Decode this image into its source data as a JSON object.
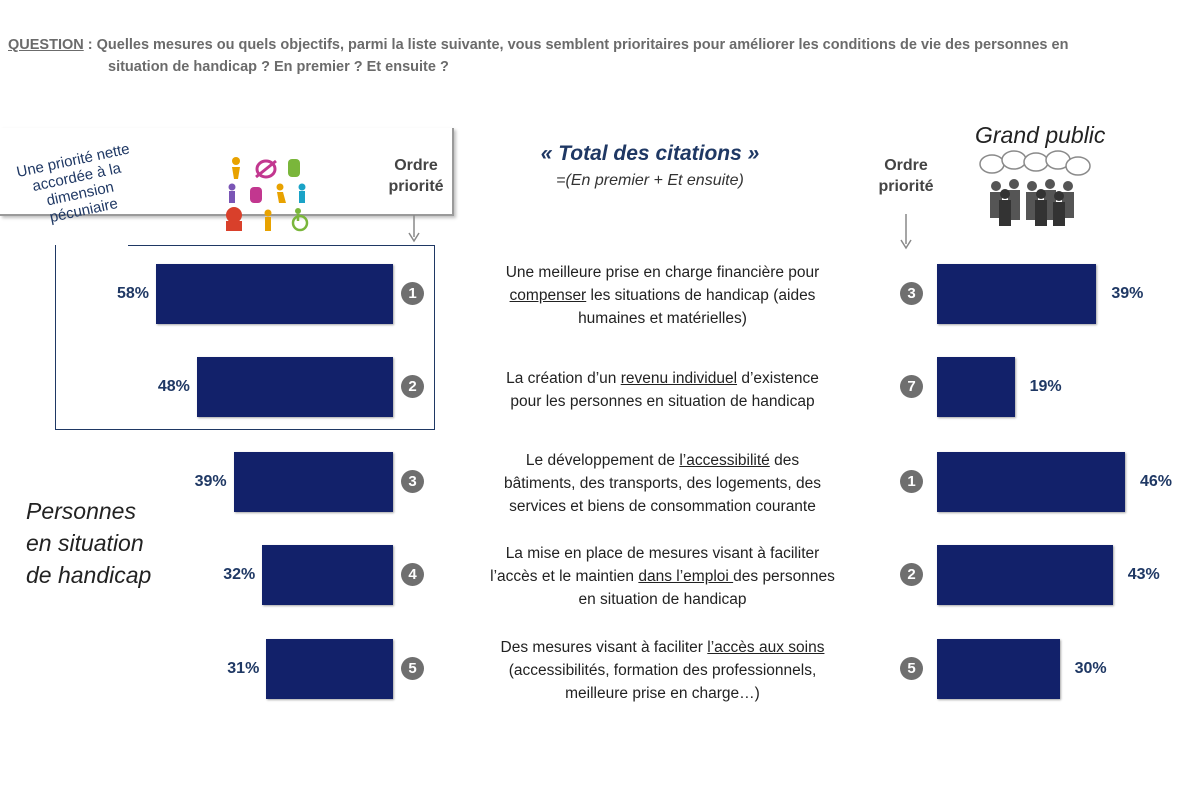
{
  "question": {
    "label": "QUESTION",
    "line1": " : Quelles  mesures ou quels objectifs, parmi la liste suivante, vous semblent prioritaires pour améliorer les conditions de vie des personnes en",
    "line2": "situation de handicap ? En premier ? Et ensuite ?"
  },
  "header": {
    "title": "« Total des citations »",
    "subtitle": "=(En premier + Et ensuite)",
    "ordre_left": [
      "Ordre",
      "priorité"
    ],
    "ordre_right": [
      "Ordre",
      "priorité"
    ],
    "grand_public": "Grand public"
  },
  "callout": [
    "Une priorité nette",
    "accordée à la",
    "dimension",
    "pécuniaire"
  ],
  "group_left": [
    "Personnes",
    "en situation",
    "de handicap"
  ],
  "measures": [
    {
      "lines": [
        [
          "Une meilleure prise en charge financière pour"
        ],
        [
          "",
          "compenser",
          " les situations de handicap (aides"
        ],
        [
          "humaines et matérielles)"
        ]
      ]
    },
    {
      "lines": [
        [
          "La création d’un ",
          "revenu individuel",
          " d’existence"
        ],
        [
          "pour les personnes en situation de handicap"
        ]
      ]
    },
    {
      "lines": [
        [
          "Le développement de ",
          "l’accessibilité",
          " des"
        ],
        [
          "bâtiments, des transports, des logements, des"
        ],
        [
          "services et biens de consommation courante"
        ]
      ]
    },
    {
      "lines": [
        [
          "La mise en place de mesures visant à faciliter"
        ],
        [
          "l’accès et le maintien ",
          "dans l’emploi ",
          "des personnes"
        ],
        [
          "en situation de handicap"
        ]
      ]
    },
    {
      "lines": [
        [
          "Des mesures visant à faciliter ",
          "l’accès aux soins"
        ],
        [
          "(accessibilités, formation des professionnels,"
        ],
        [
          "meilleure prise en charge…)"
        ]
      ]
    }
  ],
  "chart_data": {
    "type": "bar",
    "orientation": "horizontal",
    "title": "« Total des citations »",
    "subtitle": "=(En premier + Et ensuite)",
    "categories": [
      "Une meilleure prise en charge financière pour compenser les situations de handicap (aides humaines et matérielles)",
      "La création d’un revenu individuel d’existence pour les personnes en situation de handicap",
      "Le développement de l’accessibilité des bâtiments, des transports, des logements, des services et biens de consommation courante",
      "La mise en place de mesures visant à faciliter l’accès et le maintien dans l’emploi des personnes en situation de handicap",
      "Des mesures visant à faciliter l’accès aux soins (accessibilités, formation des professionnels, meilleure prise en charge…)"
    ],
    "series": [
      {
        "name": "Personnes en situation de handicap",
        "values": [
          58,
          48,
          39,
          32,
          31
        ],
        "labels": [
          "58%",
          "48%",
          "39%",
          "32%",
          "31%"
        ],
        "rank": [
          1,
          2,
          3,
          4,
          5
        ]
      },
      {
        "name": "Grand public",
        "values": [
          39,
          19,
          46,
          43,
          30
        ],
        "labels": [
          "39%",
          "19%",
          "46%",
          "43%",
          "30%"
        ],
        "rank": [
          3,
          7,
          1,
          2,
          5
        ]
      }
    ],
    "unit": "%",
    "color": "#12216a"
  }
}
